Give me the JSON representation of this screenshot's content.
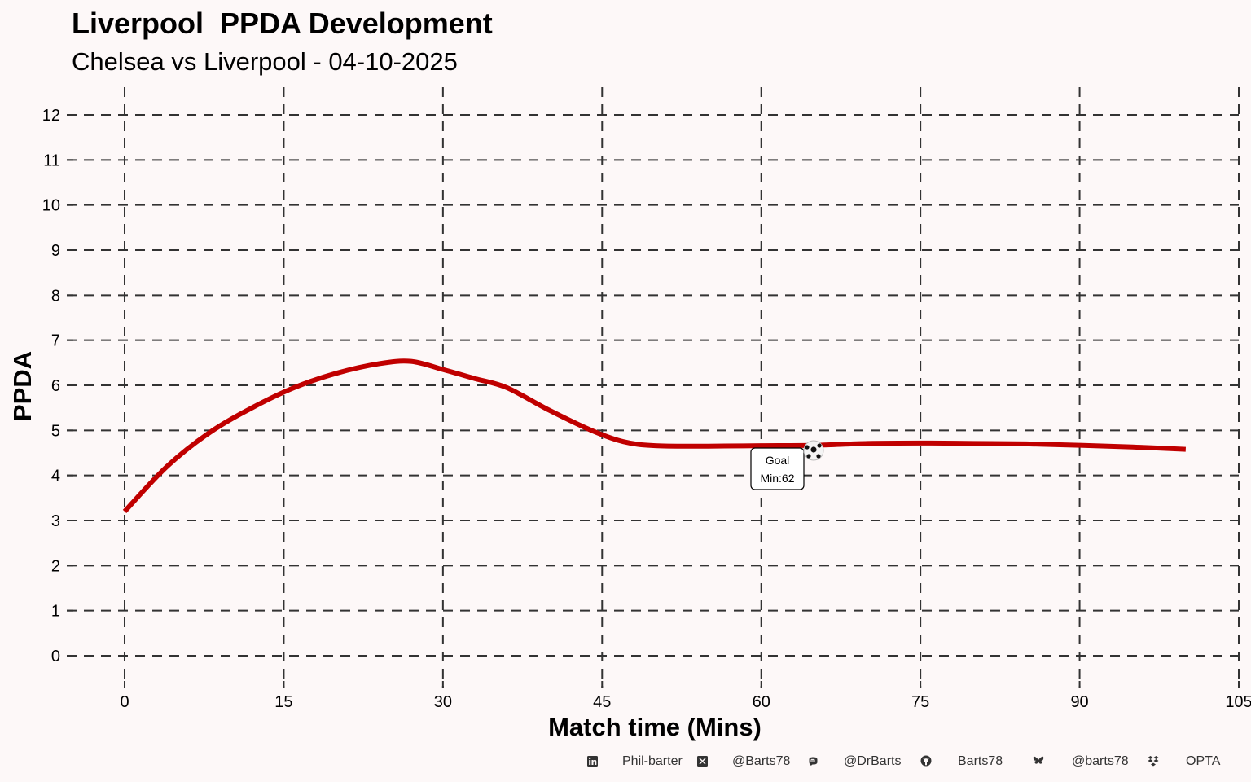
{
  "header": {
    "title": "Liverpool  PPDA Development",
    "subtitle": "Chelsea vs Liverpool - 04-10-2025"
  },
  "chart_data": {
    "type": "line",
    "title": "Liverpool  PPDA Development",
    "subtitle": "Chelsea vs Liverpool - 04-10-2025",
    "xlabel": "Match time (Mins)",
    "ylabel": "PPDA",
    "xlim": [
      0,
      105
    ],
    "ylim": [
      0,
      12
    ],
    "x_ticks": [
      "0",
      "15",
      "30",
      "45",
      "60",
      "75",
      "90",
      "105"
    ],
    "y_ticks": [
      "0",
      "1",
      "2",
      "3",
      "4",
      "5",
      "6",
      "7",
      "8",
      "9",
      "10",
      "11",
      "12"
    ],
    "grid": true,
    "line_color": "#c00000",
    "series": [
      {
        "name": "Liverpool PPDA",
        "x": [
          0,
          4,
          8,
          12,
          16,
          20,
          24,
          27,
          30,
          33,
          36,
          40,
          44,
          47,
          50,
          55,
          60,
          65,
          70,
          75,
          80,
          85,
          90,
          95,
          100
        ],
        "values": [
          3.2,
          4.2,
          4.95,
          5.5,
          5.95,
          6.27,
          6.48,
          6.53,
          6.35,
          6.15,
          5.95,
          5.45,
          5.0,
          4.75,
          4.66,
          4.65,
          4.66,
          4.67,
          4.71,
          4.72,
          4.71,
          4.7,
          4.67,
          4.63,
          4.58
        ]
      }
    ],
    "annotations": [
      {
        "type": "goal",
        "minute": 62,
        "value": 4.67,
        "label_line1": "Goal",
        "label_line2": "Min:62",
        "icon": "soccer-ball-icon"
      }
    ]
  },
  "footer": {
    "items": [
      {
        "icon": "linkedin-icon",
        "text": "Phil-barter"
      },
      {
        "icon": "x-twitter-icon",
        "text": "@Barts78"
      },
      {
        "icon": "mastodon-icon",
        "text": "@DrBarts"
      },
      {
        "icon": "github-icon",
        "text": "Barts78"
      },
      {
        "icon": "bluesky-icon",
        "text": "@barts78"
      },
      {
        "icon": "dropbox-icon",
        "text": "OPTA"
      }
    ]
  }
}
